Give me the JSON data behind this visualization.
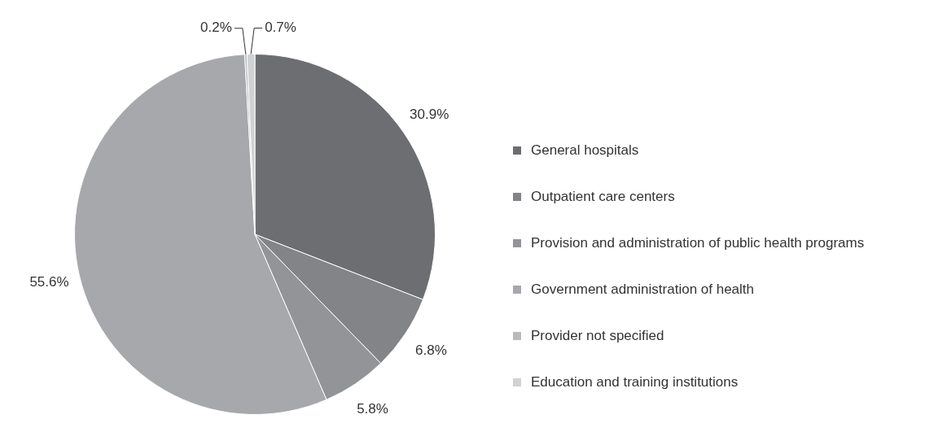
{
  "chart_data": {
    "type": "pie",
    "categories": [
      "General hospitals",
      "Outpatient care centers",
      "Provision and administration of public health programs",
      "Government administration of health",
      "Provider not specified",
      "Education and training institutions"
    ],
    "values": [
      30.9,
      6.8,
      5.8,
      55.6,
      0.2,
      0.7
    ],
    "colors": [
      "#6d6e72",
      "#838488",
      "#939498",
      "#a7a8ac",
      "#b9babe",
      "#d0d1d3"
    ],
    "value_labels": [
      "30.9%",
      "6.8%",
      "5.8%",
      "55.6%",
      "0.2%",
      "0.7%"
    ],
    "legend": "right"
  }
}
